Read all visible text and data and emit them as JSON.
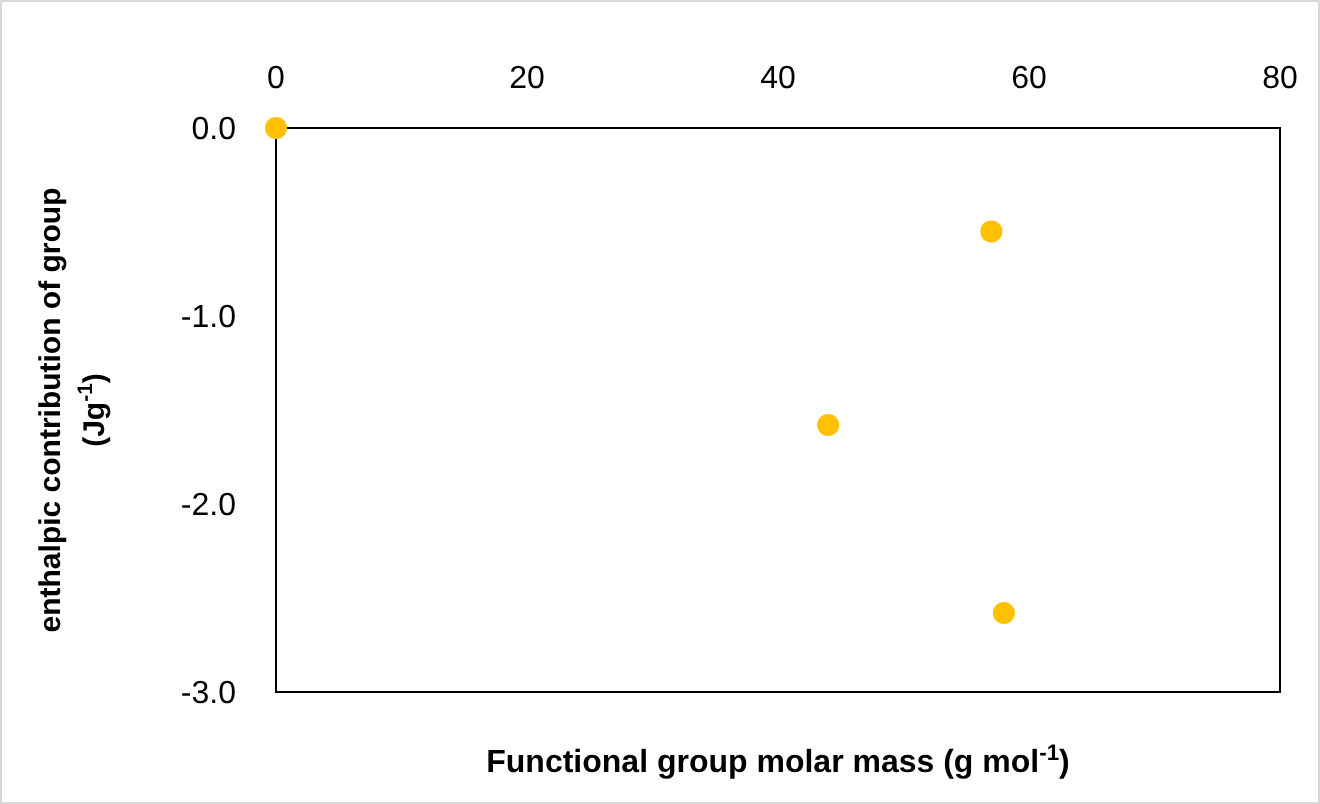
{
  "chart_data": {
    "type": "scatter",
    "xlabel": "Functional group molar mass (g mol$^{-1}$)",
    "ylabel": "enthalpic contribution of group (Jg$^{-1}$)",
    "x": [
      0,
      57,
      44,
      58
    ],
    "series": [
      {
        "color": "#ffc000",
        "values": [
          0,
          -0.55,
          -1.58,
          -2.58
        ]
      }
    ],
    "xlim": [
      0,
      80
    ],
    "xticks": [
      0,
      20,
      40,
      60,
      80
    ],
    "ylim": [
      -3,
      0
    ],
    "yticks": [
      {
        "value": -3,
        "label": "-3.0"
      },
      {
        "value": -2,
        "label": "-2.0"
      },
      {
        "value": -1,
        "label": "-1.0"
      },
      {
        "value": 0,
        "label": "0.0"
      }
    ],
    "marker": "circle"
  }
}
